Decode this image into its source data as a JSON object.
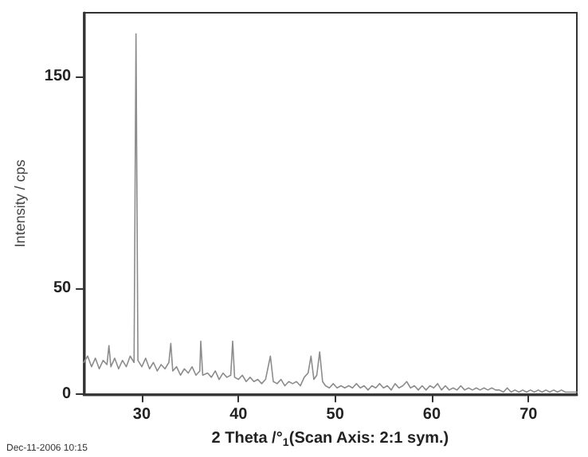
{
  "chart_data": {
    "type": "line",
    "xlabel": "2 Theta /°$_{1}$(Scan Axis: 2:1 sym.)",
    "ylabel": "Intensity / cps",
    "annotations": [
      "Dec-11-2006 10:15"
    ],
    "xlim": [
      24,
      75
    ],
    "xticks": [
      30,
      40,
      50,
      60,
      70
    ],
    "ylim": [
      0,
      180
    ],
    "yticks": [
      0,
      50,
      150
    ],
    "grid": false,
    "marker": "none",
    "line_style": "solid",
    "series": [
      {
        "color": "#8c8c8c",
        "x": [
          24.0,
          24.4,
          24.8,
          25.2,
          25.6,
          26.0,
          26.4,
          26.6,
          26.8,
          27.2,
          27.6,
          28.0,
          28.4,
          28.8,
          29.2,
          29.4,
          29.6,
          30.0,
          30.4,
          30.8,
          31.2,
          31.6,
          32.0,
          32.4,
          32.8,
          33.0,
          33.2,
          33.6,
          34.0,
          34.4,
          34.8,
          35.2,
          35.6,
          36.0,
          36.1,
          36.3,
          36.8,
          37.2,
          37.6,
          38.0,
          38.4,
          38.8,
          39.2,
          39.4,
          39.6,
          40.0,
          40.4,
          40.8,
          41.2,
          41.6,
          42.0,
          42.4,
          42.8,
          43.3,
          43.6,
          44.0,
          44.4,
          44.8,
          45.2,
          45.6,
          46.0,
          46.4,
          46.8,
          47.2,
          47.5,
          47.8,
          48.1,
          48.4,
          48.7,
          49.0,
          49.4,
          49.8,
          50.2,
          50.6,
          51.0,
          51.4,
          51.8,
          52.2,
          52.6,
          53.0,
          53.4,
          53.8,
          54.2,
          54.6,
          55.0,
          55.4,
          55.8,
          56.2,
          56.6,
          57.0,
          57.4,
          57.8,
          58.2,
          58.6,
          59.0,
          59.4,
          59.8,
          60.2,
          60.6,
          61.0,
          61.4,
          61.8,
          62.2,
          62.6,
          63.0,
          63.4,
          63.8,
          64.2,
          64.6,
          65.0,
          65.4,
          65.8,
          66.2,
          66.6,
          67.0,
          67.4,
          67.8,
          68.2,
          68.6,
          69.0,
          69.4,
          69.8,
          70.2,
          70.6,
          71.0,
          71.4,
          71.8,
          72.2,
          72.6,
          73.0,
          73.4,
          73.8,
          74.2,
          74.6,
          75.0
        ],
        "values": [
          15,
          18,
          13,
          17,
          12,
          16,
          14,
          23,
          13,
          17,
          12,
          16,
          13,
          18,
          15,
          170,
          16,
          13,
          17,
          12,
          15,
          11,
          14,
          12,
          15,
          24,
          11,
          13,
          9,
          12,
          10,
          13,
          9,
          11,
          25,
          9,
          10,
          8,
          11,
          7,
          10,
          8,
          9,
          25,
          8,
          7,
          9,
          6,
          8,
          6,
          7,
          5,
          7,
          18,
          6,
          5,
          7,
          4,
          6,
          5,
          6,
          4,
          8,
          10,
          18,
          7,
          9,
          20,
          6,
          4,
          3,
          5,
          3,
          4,
          3,
          4,
          3,
          5,
          3,
          4,
          2,
          4,
          3,
          5,
          3,
          4,
          2,
          5,
          3,
          4,
          6,
          3,
          4,
          2,
          4,
          2,
          4,
          3,
          5,
          2,
          4,
          2,
          3,
          2,
          4,
          2,
          3,
          2,
          3,
          2,
          3,
          2,
          3,
          2,
          2,
          1,
          3,
          1,
          2,
          1,
          2,
          1,
          2,
          1,
          2,
          1,
          2,
          1,
          2,
          1,
          2,
          1,
          1,
          1,
          1
        ]
      }
    ]
  }
}
